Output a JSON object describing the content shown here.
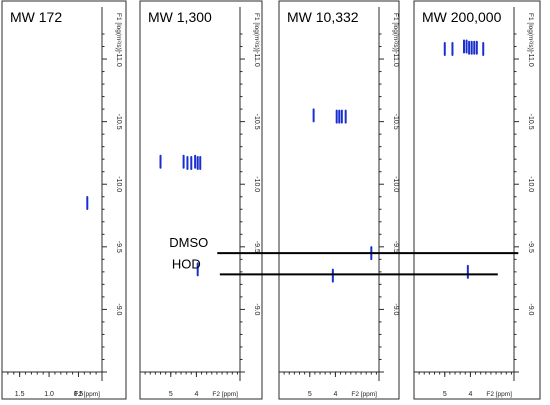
{
  "chart_data": {
    "type": "scatter",
    "figure_type": "2D DOSY NMR spectra (four panels)",
    "y_scale": "log",
    "grid": false,
    "series_color": "#1a2fd0",
    "panels": [
      {
        "title": "MW 172",
        "xlabel": "F2 [ppm]",
        "ylabel": "F1 [log(m²/s)]",
        "xlim": [
          1.8,
          0.1
        ],
        "xticks": [
          1.5,
          1.0,
          0.5
        ],
        "xtick_labels": [
          "1.5",
          "1.0",
          "0.5"
        ],
        "ylim": [
          -8.5,
          -11.2
        ],
        "yticks": [
          -9.0,
          -9.5,
          -10.0,
          -10.5,
          -11.0
        ],
        "ytick_labels": [
          "-9.0",
          "-9.5",
          "-10.0",
          "-10.5",
          "-11.0"
        ],
        "peaks": [
          {
            "x": 0.35,
            "y": -9.85
          }
        ]
      },
      {
        "title": "MW 1,300",
        "xlabel": "F2 [ppm]",
        "ylabel": "F1 [log(m²/s)]",
        "xlim": [
          6.2,
          2.3
        ],
        "xticks": [
          5,
          4
        ],
        "xtick_labels": [
          "5",
          "4"
        ],
        "ylim": [
          -8.5,
          -11.2
        ],
        "yticks": [
          -9.0,
          -9.5,
          -10.0,
          -10.5,
          -11.0
        ],
        "ytick_labels": [
          "-9.0",
          "-9.5",
          "-10.0",
          "-10.5",
          "-11.0"
        ],
        "peaks": [
          {
            "x": 5.4,
            "y": -10.18
          },
          {
            "x": 4.5,
            "y": -10.18
          },
          {
            "x": 4.35,
            "y": -10.17
          },
          {
            "x": 4.2,
            "y": -10.17
          },
          {
            "x": 4.05,
            "y": -10.18
          },
          {
            "x": 3.95,
            "y": -10.17
          },
          {
            "x": 3.85,
            "y": -10.17
          },
          {
            "x": 3.95,
            "y": -9.32
          }
        ]
      },
      {
        "title": "MW 10,332",
        "xlabel": "F2 [ppm]",
        "ylabel": "F1 [log(m²/s)]",
        "xlim": [
          6.2,
          2.3
        ],
        "xticks": [
          5,
          4
        ],
        "xtick_labels": [
          "5",
          "4"
        ],
        "ylim": [
          -8.5,
          -11.2
        ],
        "yticks": [
          -9.0,
          -9.5,
          -10.0,
          -10.5,
          -11.0
        ],
        "ytick_labels": [
          "-9.0",
          "-9.5",
          "-10.0",
          "-10.5",
          "-11.0"
        ],
        "peaks": [
          {
            "x": 4.85,
            "y": -10.55
          },
          {
            "x": 3.95,
            "y": -10.54
          },
          {
            "x": 3.85,
            "y": -10.54
          },
          {
            "x": 3.75,
            "y": -10.54
          },
          {
            "x": 3.6,
            "y": -10.54
          },
          {
            "x": 4.1,
            "y": -9.27
          },
          {
            "x": 2.6,
            "y": -9.45
          }
        ]
      },
      {
        "title": "MW 200,000",
        "xlabel": "F2 [ppm]",
        "ylabel": "F1 [log(m²/s)]",
        "xlim": [
          6.2,
          2.3
        ],
        "xticks": [
          5,
          4
        ],
        "xtick_labels": [
          "5",
          "4"
        ],
        "ylim": [
          -8.5,
          -11.2
        ],
        "yticks": [
          -9.0,
          -9.5,
          -10.0,
          -10.5,
          -11.0
        ],
        "ytick_labels": [
          "-9.0",
          "-9.5",
          "-10.0",
          "-10.5",
          "-11.0"
        ],
        "peaks": [
          {
            "x": 5.0,
            "y": -11.08
          },
          {
            "x": 4.7,
            "y": -11.08
          },
          {
            "x": 4.25,
            "y": -11.1
          },
          {
            "x": 4.15,
            "y": -11.1
          },
          {
            "x": 4.05,
            "y": -11.09
          },
          {
            "x": 3.95,
            "y": -11.09
          },
          {
            "x": 3.85,
            "y": -11.09
          },
          {
            "x": 3.75,
            "y": -11.09
          },
          {
            "x": 3.5,
            "y": -11.08
          },
          {
            "x": 4.1,
            "y": -9.3
          }
        ]
      }
    ],
    "annotations": [
      {
        "label": "DMSO",
        "y": -9.45,
        "from_panel": 1,
        "x_from": 4.2,
        "to_panel": 3,
        "x_to": 2.6
      },
      {
        "label": "HOD",
        "y": -9.28,
        "from_panel": 1,
        "x_from": 4.1,
        "to_panel": 3,
        "x_to": 3.4
      }
    ]
  }
}
